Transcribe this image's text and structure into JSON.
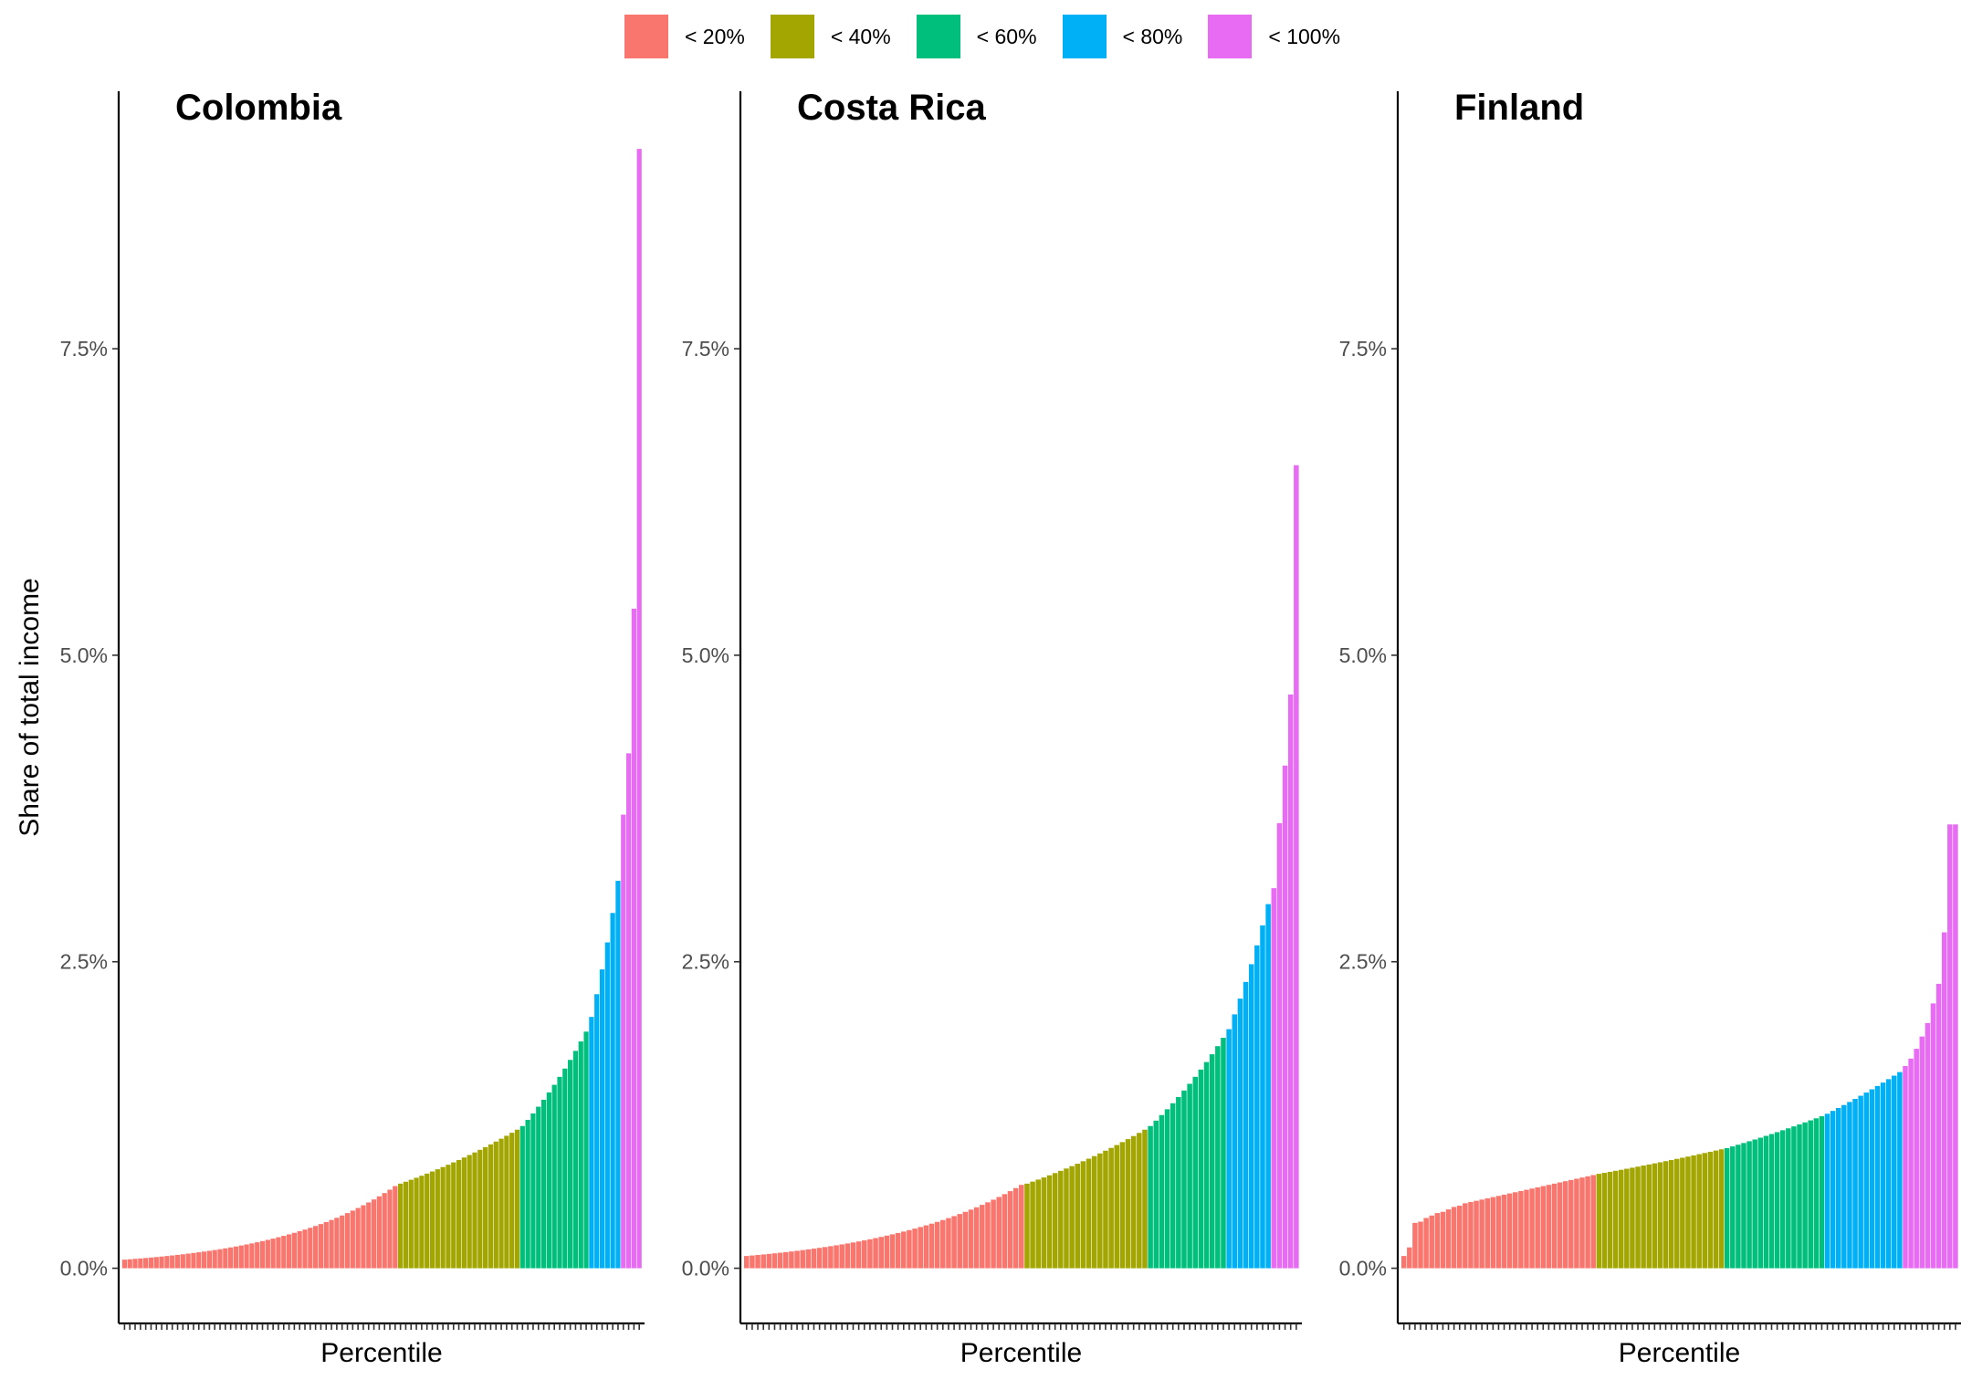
{
  "chart_data": {
    "type": "bar",
    "ylabel": "Share of total income",
    "xlabel": "Percentile",
    "yticks": [
      {
        "value": 0,
        "label": "0.0%"
      },
      {
        "value": 2.5,
        "label": "2.5%"
      },
      {
        "value": 5,
        "label": "5.0%"
      },
      {
        "value": 7.5,
        "label": "7.5%"
      }
    ],
    "ylim": [
      -0.45,
      9.6
    ],
    "legend_position": "top",
    "groups": [
      {
        "label": "< 20%",
        "color": "#F8766D"
      },
      {
        "label": "< 40%",
        "color": "#A3A500"
      },
      {
        "label": "< 60%",
        "color": "#00BF7D"
      },
      {
        "label": "< 80%",
        "color": "#00B0F6"
      },
      {
        "label": "< 100%",
        "color": "#E76BF3"
      }
    ],
    "panels": [
      {
        "title": "Colombia",
        "segments": [
          {
            "group": 0,
            "n": 52,
            "from": 0.07,
            "to": 0.67
          },
          {
            "group": 1,
            "n": 23,
            "from": 0.69,
            "to": 1.13
          },
          {
            "group": 2,
            "n": 13,
            "from": 1.16,
            "to": 1.93
          },
          {
            "group": 3,
            "n": 6,
            "from": 2.05,
            "to": 3.16
          },
          {
            "group": 4,
            "n": 4,
            "values": [
              3.7,
              4.2,
              5.38,
              9.13
            ]
          }
        ]
      },
      {
        "title": "Costa Rica",
        "segments": [
          {
            "group": 0,
            "n": 50,
            "from": 0.1,
            "to": 0.68
          },
          {
            "group": 1,
            "n": 22,
            "from": 0.69,
            "to": 1.13
          },
          {
            "group": 2,
            "n": 14,
            "from": 1.16,
            "to": 1.88
          },
          {
            "group": 3,
            "n": 8,
            "from": 1.95,
            "to": 2.97
          },
          {
            "group": 4,
            "n": 5,
            "values": [
              3.1,
              3.63,
              4.1,
              4.68,
              6.55
            ]
          }
        ]
      },
      {
        "title": "Finland",
        "segments": [
          {
            "group": 0,
            "n": 35,
            "values": [
              0.1,
              0.17,
              0.37,
              0.38,
              0.41,
              0.43,
              0.45,
              0.46,
              0.48,
              0.5,
              0.51,
              0.53,
              0.54,
              0.55,
              0.56,
              0.57,
              0.58,
              0.59,
              0.6,
              0.61,
              0.62,
              0.63,
              0.64,
              0.65,
              0.66,
              0.67,
              0.68,
              0.69,
              0.7,
              0.71,
              0.72,
              0.73,
              0.74,
              0.75,
              0.76
            ]
          },
          {
            "group": 1,
            "n": 23,
            "from": 0.77,
            "to": 0.97
          },
          {
            "group": 2,
            "n": 18,
            "from": 0.98,
            "to": 1.24
          },
          {
            "group": 3,
            "n": 14,
            "from": 1.26,
            "to": 1.6
          },
          {
            "group": 4,
            "n": 10,
            "values": [
              1.65,
              1.71,
              1.79,
              1.89,
              2.0,
              2.16,
              2.32,
              2.74,
              3.62,
              3.62
            ]
          }
        ]
      }
    ]
  }
}
